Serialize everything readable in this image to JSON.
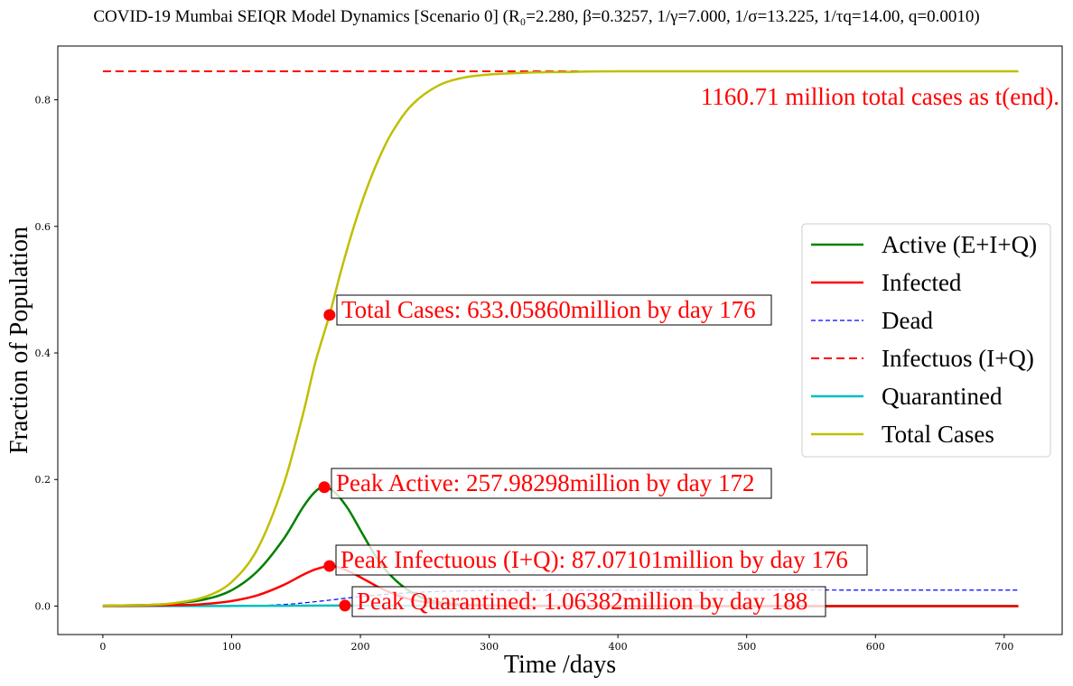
{
  "chart_data": {
    "type": "line",
    "title": "COVID-19 Mumbai SEIQR Model Dynamics [Scenario 0] (R₀=2.280, β=0.3257, 1/γ=7.000, 1/σ=13.225, 1/τq=14.00, q=0.0010)",
    "xlabel": "Time /days",
    "ylabel": "Fraction of Population",
    "xlim": [
      -35,
      745
    ],
    "ylim": [
      -0.045,
      0.885
    ],
    "xticks": [
      0,
      100,
      200,
      300,
      400,
      500,
      600,
      700
    ],
    "yticks": [
      0.0,
      0.2,
      0.4,
      0.6,
      0.8
    ],
    "grid": false,
    "legend_position": "right",
    "series": [
      {
        "name": "Active (E+I+Q)",
        "color": "#008000",
        "style": "solid",
        "x": [
          0,
          40,
          60,
          80,
          100,
          120,
          140,
          155,
          165,
          172,
          180,
          190,
          200,
          210,
          220,
          235,
          250,
          270,
          300,
          350,
          400,
          500,
          600,
          711
        ],
        "y": [
          0.0005,
          0.002,
          0.005,
          0.011,
          0.025,
          0.055,
          0.105,
          0.155,
          0.181,
          0.1878,
          0.18,
          0.155,
          0.12,
          0.085,
          0.056,
          0.028,
          0.012,
          0.004,
          0.001,
          0.0003,
          0.0001,
          0.0,
          0.0,
          0.0
        ]
      },
      {
        "name": "Infected",
        "color": "#ff0000",
        "style": "solid",
        "x": [
          0,
          60,
          80,
          100,
          120,
          140,
          155,
          165,
          176,
          185,
          195,
          205,
          215,
          225,
          240,
          260,
          290,
          350,
          400,
          500,
          600,
          711
        ],
        "y": [
          0.0,
          0.0015,
          0.0035,
          0.008,
          0.017,
          0.033,
          0.049,
          0.058,
          0.0633,
          0.06,
          0.051,
          0.04,
          0.029,
          0.02,
          0.01,
          0.004,
          0.001,
          0.0002,
          0.0,
          0.0,
          0.0,
          0.0
        ]
      },
      {
        "name": "Dead",
        "color": "#0000ff",
        "style": "dashed-thin",
        "x": [
          0,
          100,
          140,
          170,
          200,
          230,
          260,
          300,
          400,
          500,
          600,
          711
        ],
        "y": [
          0.0,
          0.0004,
          0.0025,
          0.008,
          0.015,
          0.02,
          0.023,
          0.0245,
          0.0252,
          0.0253,
          0.0253,
          0.0253
        ]
      },
      {
        "name": "Infectuos (I+Q)",
        "color": "#ff0000",
        "style": "dashed-thick",
        "x": [
          0,
          711
        ],
        "y": [
          0.845,
          0.845
        ]
      },
      {
        "name": "Quarantined",
        "color": "#00bfbf",
        "style": "solid",
        "x": [
          0,
          100,
          150,
          188,
          230,
          280,
          350,
          500,
          711
        ],
        "y": [
          0.0,
          0.0002,
          0.0006,
          0.00077,
          0.0005,
          0.0002,
          0.0,
          0.0,
          0.0
        ]
      },
      {
        "name": "Total Cases",
        "color": "#bfbf00",
        "style": "solid",
        "x": [
          0,
          40,
          60,
          80,
          100,
          120,
          140,
          155,
          165,
          176,
          185,
          195,
          205,
          215,
          225,
          240,
          260,
          280,
          300,
          330,
          360,
          400,
          500,
          600,
          711
        ],
        "y": [
          0.0005,
          0.002,
          0.006,
          0.015,
          0.038,
          0.09,
          0.19,
          0.3,
          0.385,
          0.46,
          0.53,
          0.6,
          0.66,
          0.71,
          0.75,
          0.792,
          0.822,
          0.835,
          0.84,
          0.843,
          0.844,
          0.845,
          0.845,
          0.845,
          0.845
        ]
      }
    ],
    "annotations": [
      {
        "text": "Total Cases: 633.05860million by day 176",
        "point": [
          176,
          0.46
        ],
        "boxed": true
      },
      {
        "text": "Peak Active: 257.98298million by day 172",
        "point": [
          172,
          0.1878
        ],
        "boxed": true
      },
      {
        "text": "Peak Infectuous (I+Q): 87.07101million by day 176",
        "point": [
          176,
          0.0633
        ],
        "boxed": true
      },
      {
        "text": "Peak Quarantined: 1.06382million by day 188",
        "point": [
          188,
          0.00077
        ],
        "boxed": true
      },
      {
        "text": "1160.71 million total cases as t(end).",
        "boxed": false
      }
    ]
  }
}
